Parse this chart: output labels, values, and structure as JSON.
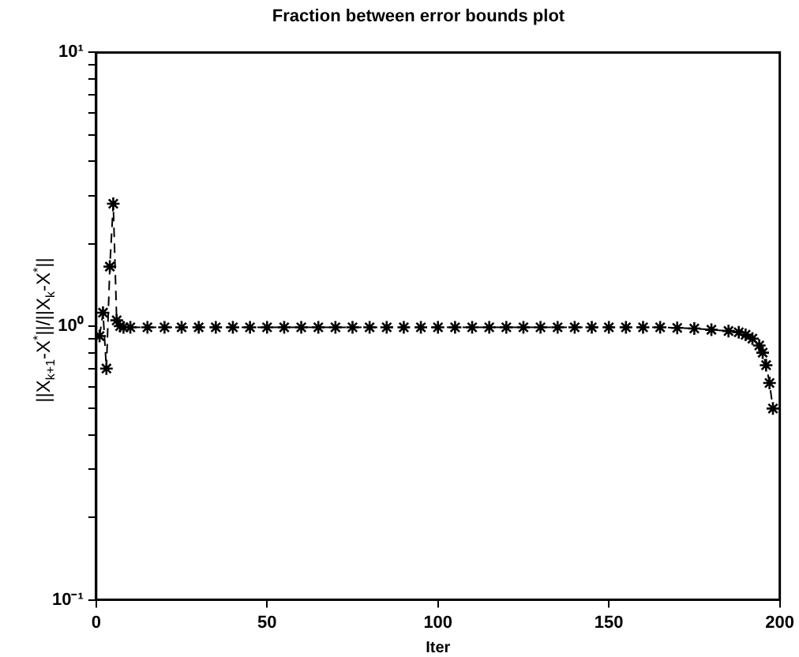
{
  "chart_data": {
    "type": "line",
    "title": "Fraction between error bounds plot",
    "xlabel": "Iter",
    "ylabel": "||X$_{k+1}$-X$^{*}$||/||X$_{k}$-X$^{*}$||",
    "x": [
      1,
      2,
      3,
      4,
      5,
      6,
      7,
      8,
      10,
      15,
      20,
      25,
      30,
      35,
      40,
      45,
      50,
      55,
      60,
      65,
      70,
      75,
      80,
      85,
      90,
      95,
      100,
      105,
      110,
      115,
      120,
      125,
      130,
      135,
      140,
      145,
      150,
      155,
      160,
      165,
      170,
      175,
      180,
      185,
      188,
      190,
      192,
      194,
      195,
      196,
      197,
      198
    ],
    "series": [
      {
        "color": "#000000",
        "values": [
          0.92,
          1.12,
          0.7,
          1.65,
          2.8,
          1.05,
          1.0,
          0.99,
          0.99,
          0.99,
          0.99,
          0.99,
          0.99,
          0.99,
          0.99,
          0.99,
          0.99,
          0.99,
          0.99,
          0.99,
          0.99,
          0.99,
          0.99,
          0.99,
          0.99,
          0.99,
          0.99,
          0.99,
          0.99,
          0.99,
          0.99,
          0.99,
          0.99,
          0.99,
          0.99,
          0.99,
          0.99,
          0.99,
          0.99,
          0.99,
          0.985,
          0.98,
          0.97,
          0.96,
          0.95,
          0.93,
          0.9,
          0.85,
          0.8,
          0.72,
          0.62,
          0.5
        ]
      }
    ],
    "xlim": [
      0,
      200
    ],
    "xticks": [
      0,
      50,
      100,
      150,
      200
    ],
    "ylim": [
      0.1,
      10
    ],
    "log": "y",
    "yticks": [
      {
        "value": 0.1,
        "label": "10⁻¹"
      },
      {
        "value": 0.2,
        "label": null
      },
      {
        "value": 0.3,
        "label": null
      },
      {
        "value": 0.4,
        "label": null
      },
      {
        "value": 0.5,
        "label": null
      },
      {
        "value": 0.6,
        "label": null
      },
      {
        "value": 0.7,
        "label": null
      },
      {
        "value": 0.8,
        "label": null
      },
      {
        "value": 0.9,
        "label": null
      },
      {
        "value": 1,
        "label": "10⁰"
      },
      {
        "value": 2,
        "label": null
      },
      {
        "value": 3,
        "label": null
      },
      {
        "value": 4,
        "label": null
      },
      {
        "value": 5,
        "label": null
      },
      {
        "value": 6,
        "label": null
      },
      {
        "value": 7,
        "label": null
      },
      {
        "value": 8,
        "label": null
      },
      {
        "value": 9,
        "label": null
      },
      {
        "value": 10,
        "label": "10¹"
      }
    ],
    "grid": false,
    "legend": false,
    "marker": "cross",
    "line_style": "dashed"
  }
}
